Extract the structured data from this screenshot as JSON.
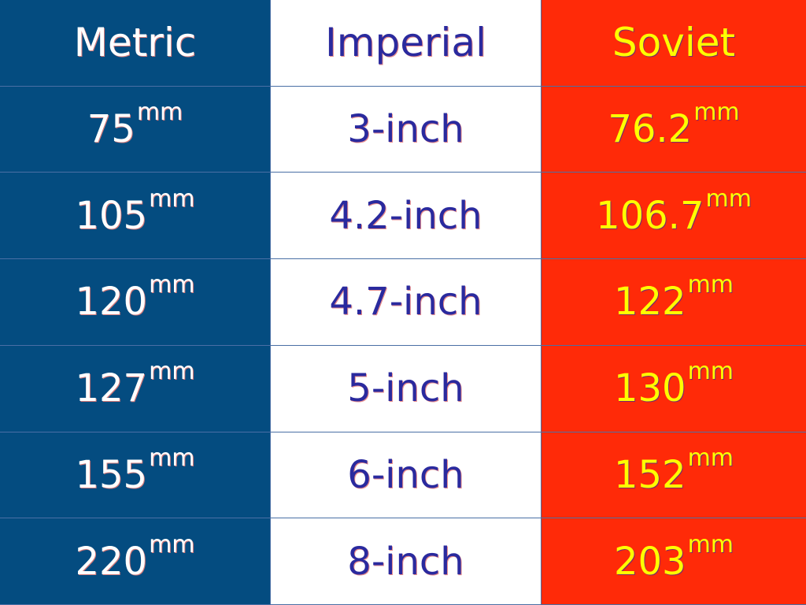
{
  "headers": {
    "metric": "Metric",
    "imperial": "Imperial",
    "soviet": "Soviet"
  },
  "unit": "mm",
  "colors": {
    "metric_bg": "#044c80",
    "imperial_bg": "#ffffff",
    "soviet_bg": "#ff2a08",
    "metric_text": "#ffffff",
    "imperial_text": "#2a2a9e",
    "soviet_text": "#ffff00"
  },
  "rows": [
    {
      "metric": "75",
      "imperial": "3-inch",
      "soviet": "76.2"
    },
    {
      "metric": "105",
      "imperial": "4.2-inch",
      "soviet": "106.7"
    },
    {
      "metric": "120",
      "imperial": "4.7-inch",
      "soviet": "122"
    },
    {
      "metric": "127",
      "imperial": "5-inch",
      "soviet": "130"
    },
    {
      "metric": "155",
      "imperial": "6-inch",
      "soviet": "152"
    },
    {
      "metric": "220",
      "imperial": "8-inch",
      "soviet": "203"
    }
  ]
}
